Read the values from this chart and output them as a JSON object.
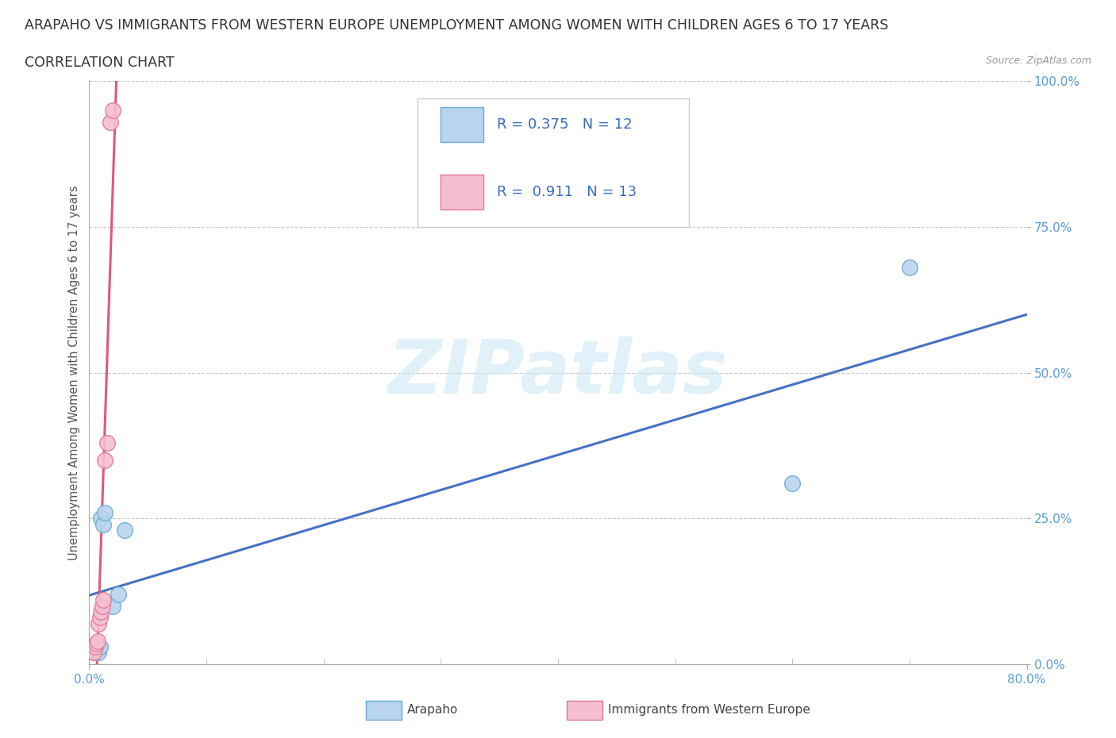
{
  "title_line1": "ARAPAHO VS IMMIGRANTS FROM WESTERN EUROPE UNEMPLOYMENT AMONG WOMEN WITH CHILDREN AGES 6 TO 17 YEARS",
  "title_line2": "CORRELATION CHART",
  "source_text": "Source: ZipAtlas.com",
  "ylabel": "Unemployment Among Women with Children Ages 6 to 17 years",
  "xlim": [
    0.0,
    0.8
  ],
  "ylim": [
    0.0,
    1.0
  ],
  "xtick_positions": [
    0.0,
    0.8
  ],
  "xticklabels": [
    "0.0%",
    "80.0%"
  ],
  "ytick_positions": [
    0.0,
    0.25,
    0.5,
    0.75,
    1.0
  ],
  "yticklabels": [
    "0.0%",
    "25.0%",
    "50.0%",
    "75.0%",
    "100.0%"
  ],
  "arapaho_x": [
    0.005,
    0.007,
    0.008,
    0.009,
    0.01,
    0.012,
    0.013,
    0.02,
    0.025,
    0.03,
    0.6,
    0.7
  ],
  "arapaho_y": [
    0.02,
    0.025,
    0.02,
    0.03,
    0.25,
    0.24,
    0.26,
    0.1,
    0.12,
    0.23,
    0.31,
    0.68
  ],
  "western_europe_x": [
    0.004,
    0.005,
    0.006,
    0.007,
    0.008,
    0.009,
    0.01,
    0.011,
    0.012,
    0.013,
    0.015,
    0.018,
    0.02
  ],
  "western_europe_y": [
    0.02,
    0.03,
    0.035,
    0.04,
    0.07,
    0.08,
    0.09,
    0.1,
    0.11,
    0.35,
    0.38,
    0.93,
    0.95
  ],
  "arapaho_color": "#b8d4ee",
  "arapaho_edge_color": "#6aaad4",
  "western_europe_color": "#f5bfcf",
  "western_europe_edge_color": "#e07898",
  "arapaho_line_color": "#4472c4",
  "western_europe_line_color": "#e05878",
  "R_arapaho": 0.375,
  "N_arapaho": 12,
  "R_western_europe": 0.911,
  "N_western_europe": 13,
  "background_color": "#ffffff",
  "grid_color": "#c8c8c8",
  "title_fontsize": 12.5,
  "subtitle_fontsize": 12.5,
  "axis_label_fontsize": 10.5,
  "tick_fontsize": 11,
  "legend_fontsize": 13,
  "watermark_color": "#cde8f5",
  "watermark_alpha": 0.6
}
